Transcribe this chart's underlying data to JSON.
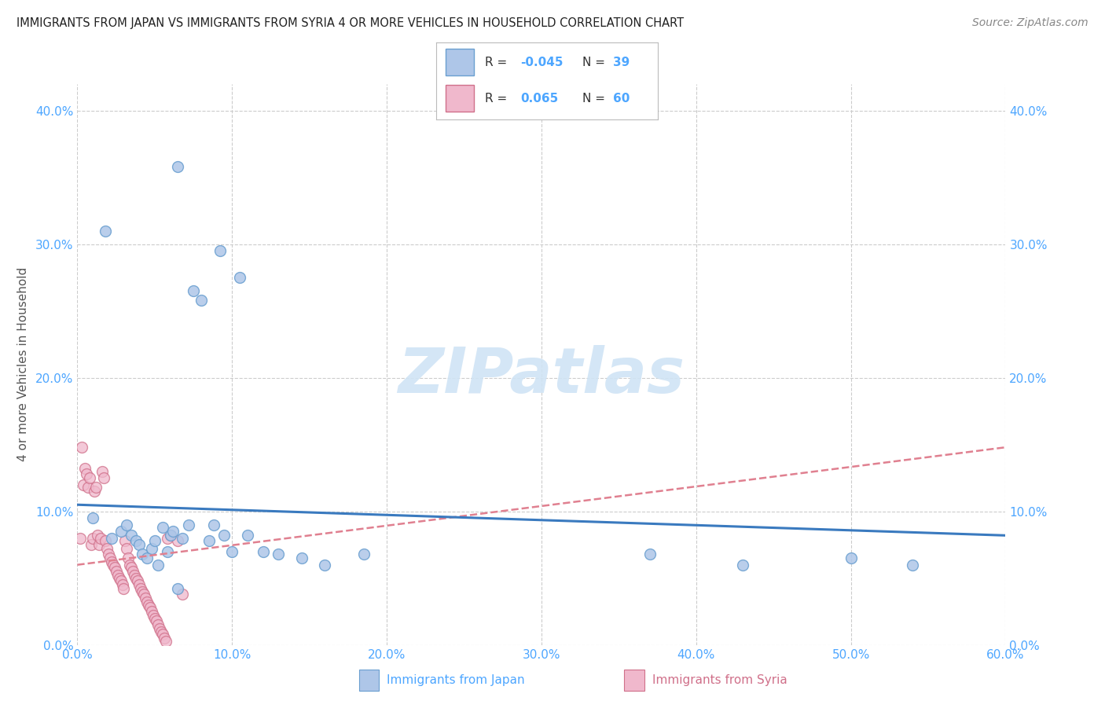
{
  "title": "IMMIGRANTS FROM JAPAN VS IMMIGRANTS FROM SYRIA 4 OR MORE VEHICLES IN HOUSEHOLD CORRELATION CHART",
  "source": "Source: ZipAtlas.com",
  "ylabel": "4 or more Vehicles in Household",
  "xlim": [
    0.0,
    0.6
  ],
  "ylim": [
    0.0,
    0.42
  ],
  "x_ticks": [
    0.0,
    0.1,
    0.2,
    0.3,
    0.4,
    0.5,
    0.6
  ],
  "x_tick_labels": [
    "0.0%",
    "10.0%",
    "20.0%",
    "30.0%",
    "40.0%",
    "50.0%",
    "60.0%"
  ],
  "y_ticks": [
    0.0,
    0.1,
    0.2,
    0.3,
    0.4
  ],
  "y_tick_labels": [
    "0.0%",
    "10.0%",
    "20.0%",
    "30.0%",
    "40.0%"
  ],
  "japan_color": "#aec6e8",
  "japan_edge_color": "#6a9fd0",
  "syria_color": "#f0b8cc",
  "syria_edge_color": "#d0708a",
  "japan_R": -0.045,
  "japan_N": 39,
  "syria_R": 0.065,
  "syria_N": 60,
  "japan_scatter_x": [
    0.01,
    0.018,
    0.022,
    0.028,
    0.032,
    0.035,
    0.038,
    0.04,
    0.042,
    0.045,
    0.048,
    0.05,
    0.052,
    0.055,
    0.058,
    0.06,
    0.062,
    0.065,
    0.068,
    0.072,
    0.075,
    0.08,
    0.085,
    0.088,
    0.092,
    0.095,
    0.1,
    0.105,
    0.11,
    0.12,
    0.13,
    0.145,
    0.16,
    0.185,
    0.37,
    0.43,
    0.5,
    0.54,
    0.065
  ],
  "japan_scatter_y": [
    0.095,
    0.31,
    0.08,
    0.085,
    0.09,
    0.082,
    0.078,
    0.075,
    0.068,
    0.065,
    0.072,
    0.078,
    0.06,
    0.088,
    0.07,
    0.082,
    0.085,
    0.358,
    0.08,
    0.09,
    0.265,
    0.258,
    0.078,
    0.09,
    0.295,
    0.082,
    0.07,
    0.275,
    0.082,
    0.07,
    0.068,
    0.065,
    0.06,
    0.068,
    0.068,
    0.06,
    0.065,
    0.06,
    0.042
  ],
  "syria_scatter_x": [
    0.002,
    0.003,
    0.004,
    0.005,
    0.006,
    0.007,
    0.008,
    0.009,
    0.01,
    0.011,
    0.012,
    0.013,
    0.014,
    0.015,
    0.016,
    0.017,
    0.018,
    0.019,
    0.02,
    0.021,
    0.022,
    0.023,
    0.024,
    0.025,
    0.026,
    0.027,
    0.028,
    0.029,
    0.03,
    0.031,
    0.032,
    0.033,
    0.034,
    0.035,
    0.036,
    0.037,
    0.038,
    0.039,
    0.04,
    0.041,
    0.042,
    0.043,
    0.044,
    0.045,
    0.046,
    0.047,
    0.048,
    0.049,
    0.05,
    0.051,
    0.052,
    0.053,
    0.054,
    0.055,
    0.056,
    0.057,
    0.058,
    0.06,
    0.065,
    0.068
  ],
  "syria_scatter_y": [
    0.08,
    0.148,
    0.12,
    0.132,
    0.128,
    0.118,
    0.125,
    0.075,
    0.08,
    0.115,
    0.118,
    0.082,
    0.075,
    0.08,
    0.13,
    0.125,
    0.078,
    0.072,
    0.068,
    0.065,
    0.062,
    0.06,
    0.058,
    0.055,
    0.052,
    0.05,
    0.048,
    0.045,
    0.042,
    0.078,
    0.072,
    0.065,
    0.06,
    0.058,
    0.055,
    0.052,
    0.05,
    0.048,
    0.045,
    0.042,
    0.04,
    0.038,
    0.035,
    0.032,
    0.03,
    0.028,
    0.025,
    0.022,
    0.02,
    0.018,
    0.015,
    0.012,
    0.01,
    0.008,
    0.005,
    0.003,
    0.08,
    0.082,
    0.078,
    0.038
  ],
  "japan_line_start_y": 0.105,
  "japan_line_end_y": 0.082,
  "syria_line_start_y": 0.06,
  "syria_line_end_y": 0.148,
  "watermark": "ZIPatlas",
  "watermark_color": "#d0e4f5",
  "background_color": "#ffffff",
  "grid_color": "#cccccc",
  "tick_color": "#4da6ff",
  "legend_color": "#4da6ff",
  "ylabel_color": "#555555",
  "title_color": "#222222",
  "source_color": "#888888",
  "japan_line_color": "#3a7abf",
  "syria_line_color": "#e08090"
}
